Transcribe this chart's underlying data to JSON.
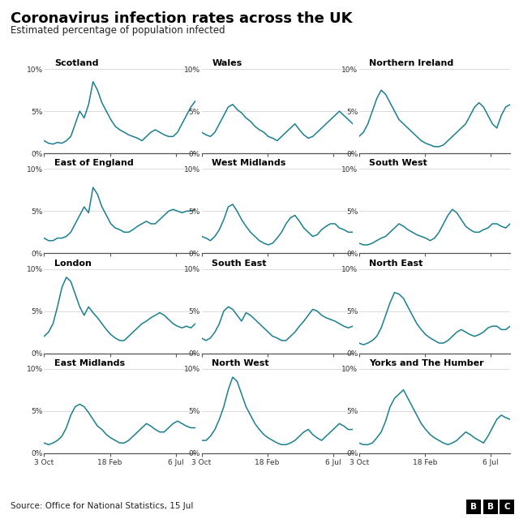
{
  "title": "Coronavirus infection rates across the UK",
  "subtitle": "Estimated percentage of population infected",
  "source": "Source: Office for National Statistics, 15 Jul",
  "line_color": "#1a7f8e",
  "background_color": "#ffffff",
  "x_tick_labels": [
    "3 Oct",
    "18 Feb",
    "6 Jul"
  ],
  "regions": [
    "Scotland",
    "Wales",
    "Northern Ireland",
    "East of England",
    "West Midlands",
    "South West",
    "London",
    "South East",
    "North East",
    "East Midlands",
    "North West",
    "Yorks and The Humber"
  ],
  "series": {
    "Scotland": [
      1.5,
      1.2,
      1.1,
      1.3,
      1.2,
      1.5,
      2.0,
      3.5,
      5.0,
      4.2,
      5.8,
      8.5,
      7.5,
      6.0,
      5.0,
      4.0,
      3.2,
      2.8,
      2.5,
      2.2,
      2.0,
      1.8,
      1.5,
      2.0,
      2.5,
      2.8,
      2.5,
      2.2,
      2.0,
      2.0,
      2.5,
      3.5,
      4.5,
      5.5,
      6.2
    ],
    "Wales": [
      2.5,
      2.2,
      2.0,
      2.5,
      3.5,
      4.5,
      5.5,
      5.8,
      5.2,
      4.8,
      4.2,
      3.8,
      3.2,
      2.8,
      2.5,
      2.0,
      1.8,
      1.5,
      2.0,
      2.5,
      3.0,
      3.5,
      2.8,
      2.2,
      1.8,
      2.0,
      2.5,
      3.0,
      3.5,
      4.0,
      4.5,
      5.0,
      4.5,
      4.0,
      3.5
    ],
    "Northern Ireland": [
      2.0,
      2.5,
      3.5,
      5.0,
      6.5,
      7.5,
      7.0,
      6.0,
      5.0,
      4.0,
      3.5,
      3.0,
      2.5,
      2.0,
      1.5,
      1.2,
      1.0,
      0.8,
      0.8,
      1.0,
      1.5,
      2.0,
      2.5,
      3.0,
      3.5,
      4.5,
      5.5,
      6.0,
      5.5,
      4.5,
      3.5,
      3.0,
      4.5,
      5.5,
      5.8
    ],
    "East of England": [
      1.8,
      1.5,
      1.5,
      1.8,
      1.8,
      2.0,
      2.5,
      3.5,
      4.5,
      5.5,
      4.8,
      7.8,
      7.0,
      5.5,
      4.5,
      3.5,
      3.0,
      2.8,
      2.5,
      2.5,
      2.8,
      3.2,
      3.5,
      3.8,
      3.5,
      3.5,
      4.0,
      4.5,
      5.0,
      5.2,
      5.0,
      4.8,
      5.0,
      5.0,
      5.2
    ],
    "West Midlands": [
      2.0,
      1.8,
      1.5,
      2.0,
      2.8,
      4.0,
      5.5,
      5.8,
      5.0,
      4.0,
      3.2,
      2.5,
      2.0,
      1.5,
      1.2,
      1.0,
      1.2,
      1.8,
      2.5,
      3.5,
      4.2,
      4.5,
      3.8,
      3.0,
      2.5,
      2.0,
      2.2,
      2.8,
      3.2,
      3.5,
      3.5,
      3.0,
      2.8,
      2.5,
      2.5
    ],
    "South West": [
      1.2,
      1.0,
      1.0,
      1.2,
      1.5,
      1.8,
      2.0,
      2.5,
      3.0,
      3.5,
      3.2,
      2.8,
      2.5,
      2.2,
      2.0,
      1.8,
      1.5,
      1.8,
      2.5,
      3.5,
      4.5,
      5.2,
      4.8,
      4.0,
      3.2,
      2.8,
      2.5,
      2.5,
      2.8,
      3.0,
      3.5,
      3.5,
      3.2,
      3.0,
      3.5
    ],
    "London": [
      2.0,
      2.5,
      3.5,
      5.5,
      7.8,
      9.0,
      8.5,
      7.0,
      5.5,
      4.5,
      5.5,
      4.8,
      4.2,
      3.5,
      2.8,
      2.2,
      1.8,
      1.5,
      1.5,
      2.0,
      2.5,
      3.0,
      3.5,
      3.8,
      4.2,
      4.5,
      4.8,
      4.5,
      4.0,
      3.5,
      3.2,
      3.0,
      3.2,
      3.0,
      3.5
    ],
    "South East": [
      1.8,
      1.5,
      1.8,
      2.5,
      3.5,
      5.0,
      5.5,
      5.2,
      4.5,
      3.8,
      4.8,
      4.5,
      4.0,
      3.5,
      3.0,
      2.5,
      2.0,
      1.8,
      1.5,
      1.5,
      2.0,
      2.5,
      3.2,
      3.8,
      4.5,
      5.2,
      5.0,
      4.5,
      4.2,
      4.0,
      3.8,
      3.5,
      3.2,
      3.0,
      3.2
    ],
    "North East": [
      1.2,
      1.0,
      1.2,
      1.5,
      2.0,
      3.0,
      4.5,
      6.0,
      7.2,
      7.0,
      6.5,
      5.5,
      4.5,
      3.5,
      2.8,
      2.2,
      1.8,
      1.5,
      1.2,
      1.2,
      1.5,
      2.0,
      2.5,
      2.8,
      2.5,
      2.2,
      2.0,
      2.2,
      2.5,
      3.0,
      3.2,
      3.2,
      2.8,
      2.8,
      3.2
    ],
    "East Midlands": [
      1.2,
      1.0,
      1.2,
      1.5,
      2.0,
      3.0,
      4.5,
      5.5,
      5.8,
      5.5,
      4.8,
      4.0,
      3.2,
      2.8,
      2.2,
      1.8,
      1.5,
      1.2,
      1.2,
      1.5,
      2.0,
      2.5,
      3.0,
      3.5,
      3.2,
      2.8,
      2.5,
      2.5,
      3.0,
      3.5,
      3.8,
      3.5,
      3.2,
      3.0,
      3.0
    ],
    "North West": [
      1.5,
      1.5,
      2.0,
      2.8,
      4.0,
      5.5,
      7.5,
      9.0,
      8.5,
      7.0,
      5.5,
      4.5,
      3.5,
      2.8,
      2.2,
      1.8,
      1.5,
      1.2,
      1.0,
      1.0,
      1.2,
      1.5,
      2.0,
      2.5,
      2.8,
      2.2,
      1.8,
      1.5,
      2.0,
      2.5,
      3.0,
      3.5,
      3.2,
      2.8,
      2.8
    ],
    "Yorks and The Humber": [
      1.2,
      1.0,
      1.0,
      1.2,
      1.8,
      2.5,
      3.8,
      5.5,
      6.5,
      7.0,
      7.5,
      6.5,
      5.5,
      4.5,
      3.5,
      2.8,
      2.2,
      1.8,
      1.5,
      1.2,
      1.0,
      1.2,
      1.5,
      2.0,
      2.5,
      2.2,
      1.8,
      1.5,
      1.2,
      2.0,
      3.0,
      4.0,
      4.5,
      4.2,
      4.0
    ]
  }
}
